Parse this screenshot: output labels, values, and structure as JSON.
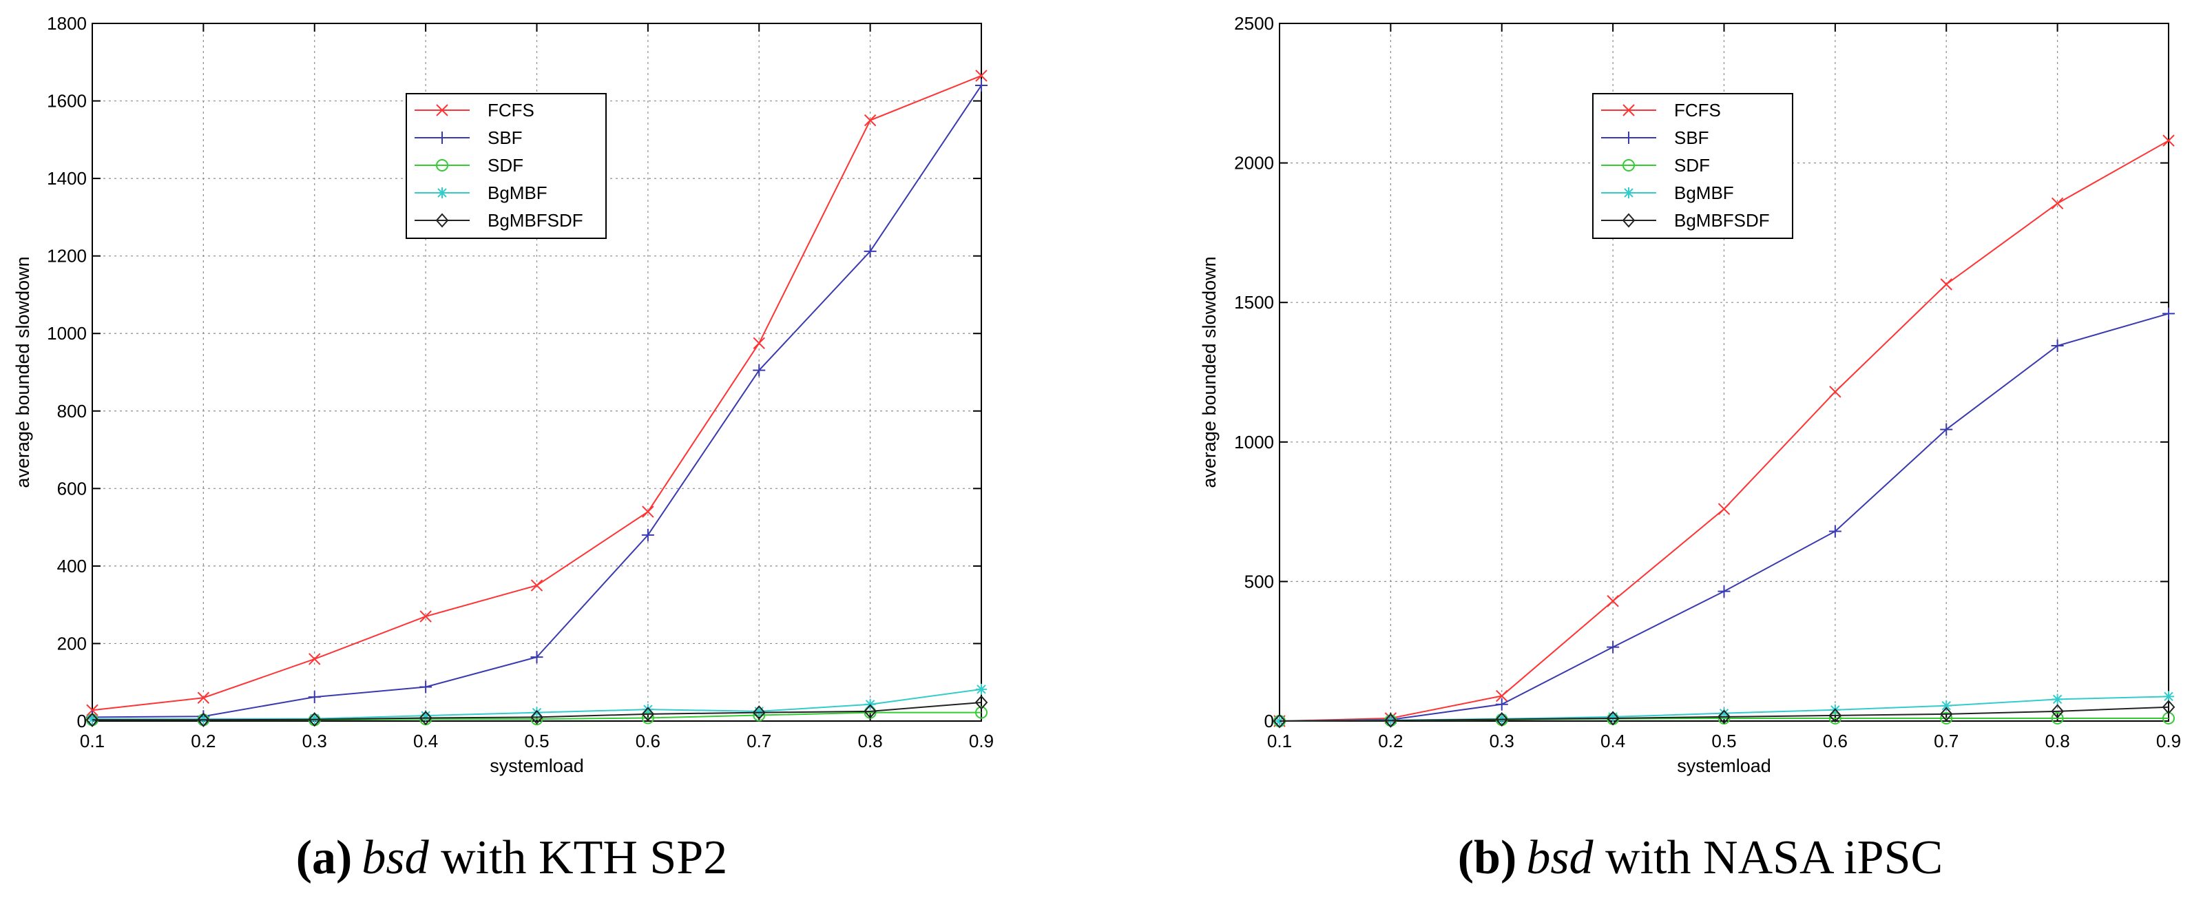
{
  "chart_data": [
    {
      "type": "line",
      "xlabel": "systemload",
      "ylabel": "average bounded slowdown",
      "xlim": [
        0.1,
        0.9
      ],
      "ylim": [
        0,
        1800
      ],
      "xticks": [
        "0.1",
        "0.2",
        "0.3",
        "0.4",
        "0.5",
        "0.6",
        "0.7",
        "0.8",
        "0.9"
      ],
      "yticks": [
        "0",
        "200",
        "400",
        "600",
        "800",
        "1000",
        "1200",
        "1400",
        "1600",
        "1800"
      ],
      "grid": true,
      "legend_position": "top-center",
      "caption": {
        "tag": "(a)",
        "italic": "bsd",
        "rest": " with KTH SP2"
      },
      "x": [
        0.1,
        0.2,
        0.3,
        0.4,
        0.5,
        0.6,
        0.7,
        0.8,
        0.9
      ],
      "series": [
        {
          "name": "FCFS",
          "color": "#ff3333",
          "marker": "x",
          "values": [
            28,
            60,
            160,
            270,
            350,
            540,
            975,
            1550,
            1665
          ]
        },
        {
          "name": "SBF",
          "color": "#3a3ab0",
          "marker": "plus",
          "values": [
            10,
            12,
            62,
            88,
            165,
            480,
            905,
            1212,
            1640
          ]
        },
        {
          "name": "SDF",
          "color": "#33cc33",
          "marker": "circle",
          "values": [
            3,
            3,
            3,
            5,
            5,
            8,
            15,
            22,
            22
          ]
        },
        {
          "name": "BgMBF",
          "color": "#33cccc",
          "marker": "star",
          "values": [
            5,
            5,
            6,
            14,
            22,
            30,
            25,
            43,
            82
          ]
        },
        {
          "name": "BgMBFSDF",
          "color": "#222222",
          "marker": "diamond",
          "values": [
            3,
            3,
            4,
            8,
            10,
            18,
            22,
            25,
            48
          ]
        }
      ]
    },
    {
      "type": "line",
      "xlabel": "systemload",
      "ylabel": "average bounded slowdown",
      "xlim": [
        0.1,
        0.9
      ],
      "ylim": [
        0,
        2500
      ],
      "xticks": [
        "0.1",
        "0.2",
        "0.3",
        "0.4",
        "0.5",
        "0.6",
        "0.7",
        "0.8",
        "0.9"
      ],
      "yticks": [
        "0",
        "500",
        "1000",
        "1500",
        "2000",
        "2500"
      ],
      "grid": true,
      "legend_position": "top-center",
      "caption": {
        "tag": "(b)",
        "italic": "bsd",
        "rest": " with NASA iPSC"
      },
      "x": [
        0.1,
        0.2,
        0.3,
        0.4,
        0.5,
        0.6,
        0.7,
        0.8,
        0.9
      ],
      "series": [
        {
          "name": "FCFS",
          "color": "#ff3333",
          "marker": "x",
          "values": [
            0,
            10,
            90,
            430,
            760,
            1180,
            1565,
            1855,
            2080
          ]
        },
        {
          "name": "SBF",
          "color": "#3a3ab0",
          "marker": "plus",
          "values": [
            0,
            5,
            60,
            265,
            465,
            680,
            1045,
            1345,
            1460
          ]
        },
        {
          "name": "SDF",
          "color": "#33cc33",
          "marker": "circle",
          "values": [
            0,
            2,
            5,
            8,
            10,
            10,
            10,
            10,
            10
          ]
        },
        {
          "name": "BgMBF",
          "color": "#33cccc",
          "marker": "star",
          "values": [
            0,
            3,
            8,
            15,
            28,
            40,
            55,
            78,
            88
          ]
        },
        {
          "name": "BgMBFSDF",
          "color": "#222222",
          "marker": "diamond",
          "values": [
            0,
            2,
            6,
            10,
            15,
            20,
            25,
            35,
            50
          ]
        }
      ]
    }
  ]
}
